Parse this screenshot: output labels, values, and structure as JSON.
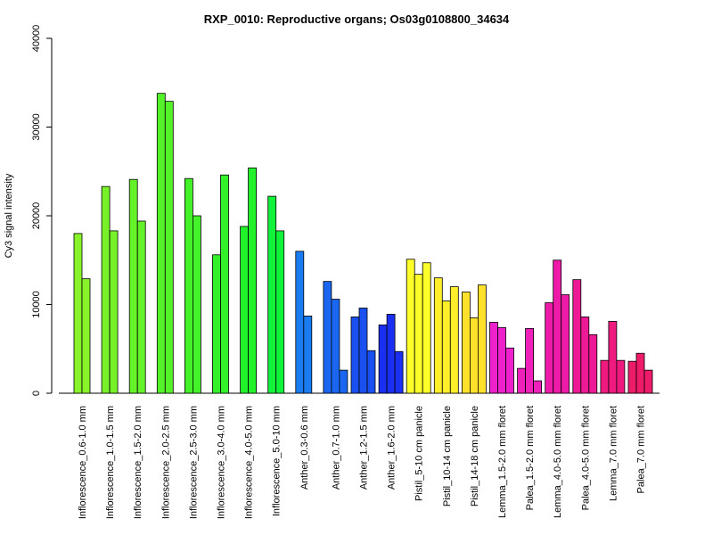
{
  "chart_data": {
    "type": "bar",
    "title": "RXP_0010: Reproductive organs; Os03g0108800_34634",
    "xlabel": "",
    "ylabel": "Cy3 signal intensity",
    "ylim": [
      0,
      40000
    ],
    "yticks": [
      0,
      10000,
      20000,
      30000,
      40000
    ],
    "grid": false,
    "groups": [
      {
        "label": "Inflorescence_0.6-1.0 mm",
        "color": "#88f22a",
        "values": [
          18000,
          12900
        ]
      },
      {
        "label": "Inflorescence_1.0-1.5 mm",
        "color": "#77f22a",
        "values": [
          23300,
          18300
        ]
      },
      {
        "label": "Inflorescence_1.5-2.0 mm",
        "color": "#66f22a",
        "values": [
          24100,
          19400
        ]
      },
      {
        "label": "Inflorescence_2.0-2.5 mm",
        "color": "#55f22a",
        "values": [
          33800,
          32900
        ]
      },
      {
        "label": "Inflorescence_2.5-3.0 mm",
        "color": "#44f22a",
        "values": [
          24200,
          20000
        ]
      },
      {
        "label": "Inflorescence_3.0-4.0 mm",
        "color": "#33f22a",
        "values": [
          15600,
          24600
        ]
      },
      {
        "label": "Inflorescence_4.0-5.0 mm",
        "color": "#22f22a",
        "values": [
          18800,
          25400
        ]
      },
      {
        "label": "Inflorescence_5.0-10 mm",
        "color": "#11f23a",
        "values": [
          22200,
          18300
        ]
      },
      {
        "label": "Anther_0.3-0.6 mm",
        "color": "#1a7cf0",
        "values": [
          16000,
          8700
        ]
      },
      {
        "label": "Anther_0.7-1.0 mm",
        "color": "#1a66f0",
        "values": [
          12600,
          10600,
          2600
        ]
      },
      {
        "label": "Anther_1.2-1.5 mm",
        "color": "#1a4ff0",
        "values": [
          8600,
          9600,
          4800
        ]
      },
      {
        "label": "Anther_1.6-2.0 mm",
        "color": "#1a2ff0",
        "values": [
          7700,
          8900,
          4700
        ]
      },
      {
        "label": "Pistil_5-10 cm panicle",
        "color": "#ffff2a",
        "values": [
          15100,
          13400,
          14700
        ]
      },
      {
        "label": "Pistil_10-14 cm panicle",
        "color": "#ffee2a",
        "values": [
          13000,
          10400,
          12000
        ]
      },
      {
        "label": "Pistil_14-18 cm panicle",
        "color": "#ffe02a",
        "values": [
          11400,
          8500,
          12200
        ]
      },
      {
        "label": "Lemma_1.5-2.0 mm floret",
        "color": "#ee22cc",
        "values": [
          8000,
          7400,
          5100
        ]
      },
      {
        "label": "Palea_1.5-2.0 mm floret",
        "color": "#ee22bb",
        "values": [
          2800,
          7300,
          1400
        ]
      },
      {
        "label": "Lemma_4.0-5.0 mm floret",
        "color": "#ee1aa8",
        "values": [
          10200,
          15000,
          11100
        ]
      },
      {
        "label": "Palea_4.0-5.0 mm floret",
        "color": "#ee1a95",
        "values": [
          12800,
          8600,
          6600
        ]
      },
      {
        "label": "Lemma_7.0 mm floret",
        "color": "#ee1a80",
        "values": [
          3700,
          8100,
          3700
        ]
      },
      {
        "label": "Palea_7.0 mm floret",
        "color": "#ee1a6a",
        "values": [
          3600,
          4500,
          2600
        ]
      }
    ]
  }
}
